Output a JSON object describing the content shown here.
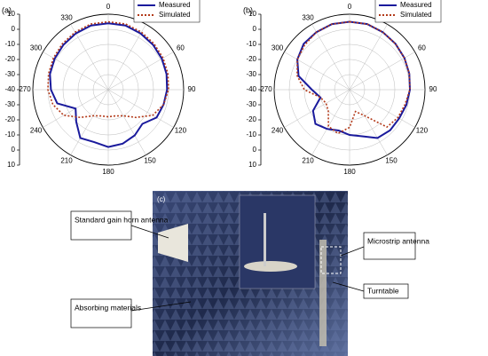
{
  "chart_data": [
    {
      "type": "polar",
      "panel_label": "(a)",
      "rlim": [
        -40,
        10
      ],
      "rticks": [
        -40,
        -30,
        -20,
        -10,
        0,
        10
      ],
      "theta": [
        0,
        15,
        30,
        45,
        60,
        75,
        90,
        105,
        120,
        135,
        150,
        165,
        180,
        195,
        210,
        225,
        240,
        255,
        270,
        285,
        300,
        315,
        330,
        345
      ],
      "theta_ticks": [
        0,
        30,
        60,
        90,
        120,
        150,
        180,
        210,
        240,
        270,
        300,
        330
      ],
      "grid": true,
      "legend": "upper right",
      "series": [
        {
          "name": "Measured",
          "color": "#1a1a9c",
          "style": "solid",
          "values": [
            4,
            4,
            3,
            2,
            1,
            0,
            -1,
            -2,
            -3,
            -8,
            -5,
            -3,
            -2,
            -4,
            -3,
            -10,
            -15,
            -5,
            -2,
            0,
            1,
            2,
            3,
            4
          ]
        },
        {
          "name": "Simulated",
          "color": "#b33a1a",
          "style": "dotted",
          "values": [
            5,
            5,
            4,
            3,
            2,
            1,
            0,
            -2,
            -6,
            -14,
            -20,
            -22,
            -22,
            -22,
            -20,
            -14,
            -6,
            -2,
            0,
            1,
            2,
            3,
            4,
            5
          ]
        }
      ]
    },
    {
      "type": "polar",
      "panel_label": "(b)",
      "rlim": [
        -40,
        10
      ],
      "rticks": [
        -40,
        -30,
        -20,
        -10,
        0,
        10
      ],
      "theta": [
        0,
        15,
        30,
        45,
        60,
        75,
        90,
        105,
        120,
        135,
        150,
        165,
        180,
        195,
        210,
        225,
        240,
        255,
        270,
        285,
        300,
        315,
        330,
        345
      ],
      "theta_ticks": [
        0,
        30,
        60,
        90,
        120,
        150,
        180,
        210,
        240,
        270,
        300,
        330
      ],
      "grid": true,
      "legend": "upper right",
      "series": [
        {
          "name": "Measured",
          "color": "#1a1a9c",
          "style": "solid",
          "values": [
            5,
            5,
            4,
            3,
            2,
            1,
            0,
            -1,
            -2,
            -2,
            -3,
            -8,
            -10,
            -12,
            -10,
            -8,
            -12,
            -20,
            -15,
            -5,
            0,
            3,
            4,
            5
          ]
        },
        {
          "name": "Simulated",
          "color": "#b33a1a",
          "style": "dotted",
          "values": [
            5,
            5,
            4,
            3,
            2,
            1,
            0,
            -2,
            -3,
            -5,
            -20,
            -25,
            -15,
            -10,
            -12,
            -20,
            -22,
            -20,
            -10,
            -4,
            0,
            2,
            4,
            5
          ]
        }
      ]
    }
  ],
  "photo": {
    "panel_label": "(c)",
    "annotations": [
      "Standard gain horn antenna",
      "Absorbing materials",
      "Microstrip antenna",
      "Turntable"
    ]
  }
}
